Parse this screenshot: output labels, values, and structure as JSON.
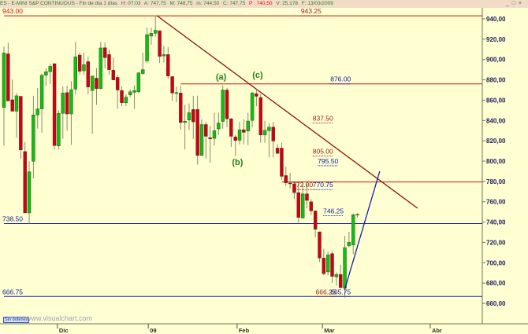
{
  "header": {
    "symbol": "ES - E-MINI S&P CONTINUOUS - Fin de día 1 días",
    "time": "H: 07:03",
    "open": "A: 747,75",
    "high": "M: 748,75",
    "low": "m: 744,50",
    "close": "C: 747,75",
    "prev": "P : 740,50",
    "volume": "V: 25.178",
    "date": "F: 13/03/2009",
    "window_buttons": "_ □ ×"
  },
  "footer": {
    "orders_button": "Sin órdenes",
    "watermark": "www.visualchart.com"
  },
  "colors": {
    "background": "#ffffd2",
    "up": "#10c010",
    "down": "#d00010",
    "wick": "#8a8a70",
    "red_line": "#d01010",
    "blue_line": "#1020a0",
    "trend_line": "#901010",
    "axis_text": "#202060",
    "wave_label": "#208020"
  },
  "chart_data": {
    "type": "candlestick",
    "ylim": [
      655,
      958
    ],
    "y_ticks": [
      "940,00",
      "920,00",
      "900,00",
      "880,00",
      "860,00",
      "840,00",
      "820,00",
      "800,00",
      "780,00",
      "760,00",
      "740,00",
      "720,00",
      "700,00",
      "680,00",
      "660,00"
    ],
    "y_tick_values": [
      940,
      920,
      900,
      880,
      860,
      840,
      820,
      800,
      780,
      760,
      740,
      720,
      700,
      680,
      660
    ],
    "x_ticks": [
      {
        "label": "Dic",
        "bar": 12.7
      },
      {
        "label": "09",
        "bar": 34.3
      },
      {
        "label": "Feb",
        "bar": 55.4
      },
      {
        "label": "Mar",
        "bar": 75.7
      },
      {
        "label": "Abr",
        "bar": 101.3
      }
    ],
    "ohlc": [
      [
        852.8,
        912.6,
        815.3,
        906.4
      ],
      [
        905.6,
        916.4,
        859,
        859.2
      ],
      [
        860.4,
        880.3,
        849,
        849.1
      ],
      [
        849.1,
        866.9,
        823,
        864.3
      ],
      [
        863.8,
        864,
        802.4,
        811
      ],
      [
        809.4,
        819,
        749,
        749
      ],
      [
        749,
        799.8,
        738.5,
        789.5
      ],
      [
        799.8,
        864.3,
        783,
        845.5
      ],
      [
        845.5,
        872,
        832,
        851.4
      ],
      [
        851.4,
        886.2,
        828,
        884.5
      ],
      [
        884.5,
        891.5,
        874,
        888
      ],
      [
        888,
        895.9,
        876,
        893.3
      ],
      [
        895.9,
        896,
        811.5,
        815.3
      ],
      [
        815,
        850,
        811.5,
        847
      ],
      [
        847,
        873.5,
        822,
        867
      ],
      [
        867.5,
        874,
        830,
        846.4
      ],
      [
        846.4,
        878.6,
        816,
        870.3
      ],
      [
        870.8,
        917.3,
        865.7,
        902.6
      ],
      [
        904.4,
        906.9,
        885,
        888.4
      ],
      [
        888.9,
        906.9,
        885,
        895
      ],
      [
        897.9,
        903,
        866,
        872.9
      ],
      [
        869.5,
        883.7,
        827,
        883.7
      ],
      [
        881.6,
        891.5,
        855.4,
        871.4
      ],
      [
        871.4,
        917,
        870.8,
        911.4
      ],
      [
        911.6,
        916.5,
        891.5,
        901.8
      ],
      [
        904.9,
        909.6,
        885,
        890
      ],
      [
        889.5,
        901.8,
        879.9,
        879.9
      ],
      [
        882.4,
        885,
        851.5,
        870
      ],
      [
        869.5,
        873.4,
        854,
        857.4
      ],
      [
        857.4,
        865.6,
        854,
        863
      ],
      [
        865.2,
        870.8,
        863,
        868.2
      ],
      [
        867.7,
        874.7,
        851.5,
        869.5
      ],
      [
        868.2,
        887.5,
        867,
        886.8
      ],
      [
        886.2,
        906.9,
        885,
        890
      ],
      [
        898.6,
        931.5,
        896.5,
        924.5
      ],
      [
        923,
        931.5,
        914.6,
        925.8
      ],
      [
        925.8,
        943,
        922.4,
        928.8
      ],
      [
        928.3,
        928.5,
        896.6,
        903
      ],
      [
        903.6,
        913.3,
        897,
        904.9
      ],
      [
        904.9,
        912,
        881,
        883.7
      ],
      [
        883.2,
        883.2,
        859.2,
        867
      ],
      [
        866.5,
        873.4,
        858,
        867.5
      ],
      [
        867,
        874,
        830.9,
        838
      ],
      [
        838,
        855.4,
        811.5,
        839.3
      ],
      [
        840.4,
        856.7,
        830.9,
        847.6
      ],
      [
        850.8,
        864.4,
        821.8,
        838.6
      ],
      [
        850.8,
        864.4,
        796.6,
        805.6
      ],
      [
        805.6,
        841.2,
        806,
        836
      ],
      [
        836,
        838.6,
        802.5,
        824.4
      ],
      [
        823,
        834.7,
        798.6,
        821.8
      ],
      [
        822.4,
        847.6,
        815.3,
        830
      ],
      [
        831.7,
        847.6,
        825.7,
        837.5
      ],
      [
        839,
        874.7,
        832,
        870
      ],
      [
        870,
        872.1,
        833.4,
        841.7
      ],
      [
        841.7,
        842.5,
        814,
        824.4
      ],
      [
        823.9,
        825.7,
        805,
        820.3
      ],
      [
        820.5,
        838.6,
        816.6,
        830.9
      ],
      [
        830.9,
        841.2,
        816.6,
        828.3
      ],
      [
        829.6,
        847.6,
        815.8,
        839.4
      ],
      [
        840,
        868.2,
        833.4,
        867
      ],
      [
        866.4,
        869.5,
        854,
        863.8
      ],
      [
        862.6,
        865.6,
        818,
        825.7
      ],
      [
        825.7,
        839.8,
        818,
        830.4
      ],
      [
        830,
        837.3,
        803.8,
        833.5
      ],
      [
        833.5,
        838.6,
        803.8,
        819.8
      ],
      [
        812.8,
        816.6,
        807.6,
        807.6
      ],
      [
        812.8,
        818,
        781.8,
        785
      ],
      [
        785.8,
        794.7,
        775.4,
        778.6
      ],
      [
        778.6,
        788.4,
        773,
        777.6
      ],
      [
        777.6,
        780.7,
        762.6,
        769
      ],
      [
        769,
        778,
        739.4,
        744.6
      ],
      [
        744,
        778,
        743.3,
        767.8
      ],
      [
        767.8,
        778,
        753.6,
        761.3
      ],
      [
        760,
        762.6,
        747,
        751
      ],
      [
        751,
        751,
        725.2,
        733
      ],
      [
        730.4,
        730.4,
        700.7,
        704.6
      ],
      [
        704.6,
        713.6,
        687.9,
        689.2
      ],
      [
        691,
        711,
        687.9,
        707.7
      ],
      [
        709,
        711.6,
        680.1,
        686.6
      ],
      [
        686,
        690.4,
        677.5,
        688.4
      ],
      [
        688.4,
        698.1,
        675,
        675.5
      ],
      [
        675,
        726.5,
        665.75,
        714.9
      ],
      [
        716.7,
        730.4,
        714.9,
        720.2
      ],
      [
        717.5,
        748.4,
        708.5,
        747.2
      ],
      [
        747.75,
        748.75,
        744.5,
        747.75
      ]
    ],
    "horizontal_levels": [
      {
        "price": 943,
        "color": "red",
        "from_bar": 0
      },
      {
        "price": 876,
        "color": "red",
        "from_bar": 42
      },
      {
        "price": 779.5,
        "color": "red",
        "from_bar": 66
      },
      {
        "price": 738.5,
        "color": "blue",
        "from_bar": 0
      },
      {
        "price": 666.75,
        "color": "blue",
        "from_bar": 0
      }
    ],
    "trend_lines": [
      {
        "color": "trend",
        "from": [
          36.4,
          943
        ],
        "to": [
          98.3,
          753.6
        ]
      },
      {
        "color": "blue",
        "from": [
          81,
          674
        ],
        "to": [
          89.3,
          790
        ]
      }
    ],
    "price_labels": [
      {
        "text": "943.00",
        "color": "red",
        "price": 943,
        "bar": 0,
        "anchor": "left"
      },
      {
        "text": "943.25",
        "color": "darkred",
        "price": 943,
        "bar": 73,
        "anchor": "center"
      },
      {
        "text": "876.00",
        "color": "blue",
        "price": 876,
        "bar": 80,
        "anchor": "center"
      },
      {
        "text": "837.50",
        "color": "darkred",
        "price": 837.5,
        "bar": 75.8,
        "anchor": "center"
      },
      {
        "text": "805.00",
        "color": "darkred",
        "price": 805,
        "bar": 75.8,
        "anchor": "center"
      },
      {
        "text": "795.50",
        "color": "blue",
        "price": 795.5,
        "bar": 77,
        "anchor": "center"
      },
      {
        "text": "772.00",
        "color": "darkred",
        "price": 772,
        "bar": 71,
        "anchor": "center"
      },
      {
        "text": "770.75",
        "color": "blue",
        "price": 772,
        "bar": 75.8,
        "anchor": "center"
      },
      {
        "text": "746.25",
        "color": "blue",
        "price": 746.25,
        "bar": 78.3,
        "anchor": "center"
      },
      {
        "text": "738.50",
        "color": "blue",
        "price": 738.5,
        "bar": 0,
        "anchor": "left"
      },
      {
        "text": "666.25",
        "color": "darkred",
        "price": 666.75,
        "bar": 76.5,
        "anchor": "center"
      },
      {
        "text": "665.75",
        "color": "blue",
        "price": 666.75,
        "bar": 80,
        "anchor": "center"
      },
      {
        "text": "666.75",
        "color": "blue",
        "price": 666.75,
        "bar": 0,
        "anchor": "left"
      }
    ],
    "wave_labels": [
      {
        "text": "(a)",
        "bar": 51.6,
        "price": 880
      },
      {
        "text": "(c)",
        "bar": 60.3,
        "price": 882
      },
      {
        "text": "(b)",
        "bar": 55.5,
        "price": 796
      }
    ]
  }
}
